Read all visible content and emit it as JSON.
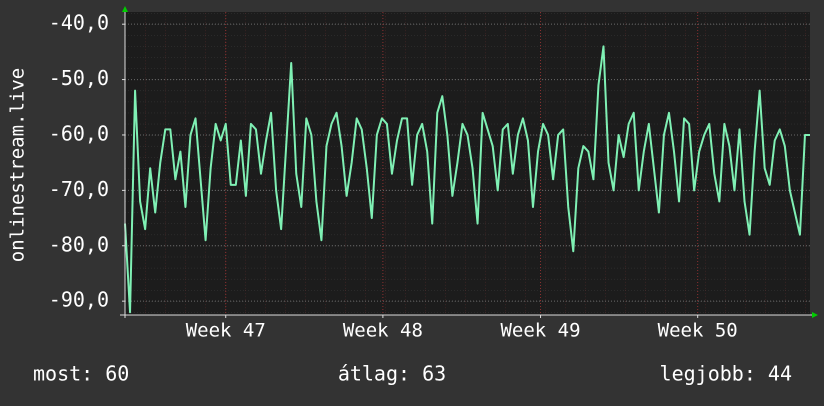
{
  "chart_data": {
    "type": "line",
    "y_label": "onlinestream.live",
    "series": [
      {
        "name": "onlinestream.live",
        "color": "#7ff0b4",
        "values": [
          -76,
          -92,
          -52,
          -72,
          -77,
          -66,
          -74,
          -65,
          -59,
          -59,
          -68,
          -63,
          -73,
          -60,
          -57,
          -68,
          -79,
          -66,
          -58,
          -61,
          -58,
          -69,
          -69,
          -61,
          -71,
          -58,
          -59,
          -67,
          -61,
          -56,
          -70,
          -77,
          -62,
          -47,
          -67,
          -73,
          -57,
          -60,
          -72,
          -79,
          -62,
          -58,
          -56,
          -62,
          -71,
          -65,
          -57,
          -59,
          -66,
          -75,
          -60,
          -57,
          -58,
          -67,
          -61,
          -57,
          -57,
          -69,
          -60,
          -58,
          -63,
          -76,
          -56,
          -53,
          -60,
          -71,
          -65,
          -58,
          -60,
          -66,
          -76,
          -56,
          -59,
          -62,
          -70,
          -59,
          -58,
          -67,
          -60,
          -57,
          -61,
          -73,
          -63,
          -58,
          -60,
          -68,
          -60,
          -59,
          -73,
          -81,
          -66,
          -62,
          -63,
          -68,
          -51,
          -44,
          -65,
          -70,
          -60,
          -64,
          -58,
          -56,
          -70,
          -63,
          -58,
          -66,
          -74,
          -60,
          -56,
          -63,
          -72,
          -57,
          -58,
          -70,
          -63,
          -60,
          -58,
          -67,
          -72,
          -58,
          -62,
          -70,
          -59,
          -72,
          -78,
          -63,
          -52,
          -66,
          -69,
          -61,
          -59,
          -62,
          -70,
          -74,
          -78,
          -60,
          -60
        ]
      }
    ],
    "xlim": [
      0,
      136
    ],
    "xticks": [
      {
        "value": 20,
        "label": "Week 47"
      },
      {
        "value": 51.2,
        "label": "Week 48"
      },
      {
        "value": 82.5,
        "label": "Week 49"
      },
      {
        "value": 113.7,
        "label": "Week 50"
      }
    ],
    "ylim": [
      -92.5,
      -37.8
    ],
    "yticks": [
      {
        "value": -90,
        "label": "-90,0"
      },
      {
        "value": -80,
        "label": "-80,0"
      },
      {
        "value": -70,
        "label": "-70,0"
      },
      {
        "value": -60,
        "label": "-60,0"
      },
      {
        "value": -50,
        "label": "-50,0"
      },
      {
        "value": -40,
        "label": "-40,0"
      }
    ],
    "grid": true,
    "footer": {
      "current": "most: 60",
      "average": "átlag: 63",
      "best": "legjobb: 44"
    }
  }
}
